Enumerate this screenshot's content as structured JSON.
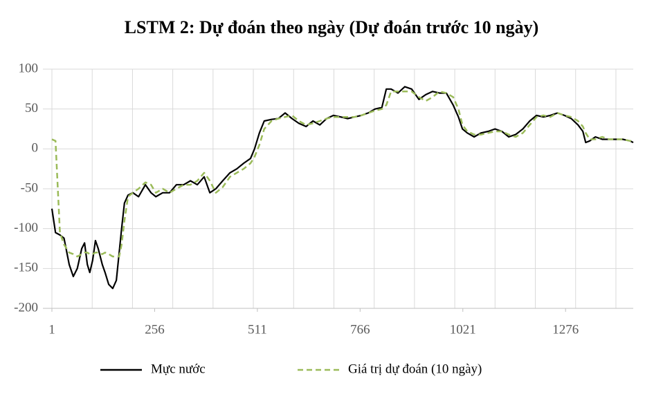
{
  "chart_data": {
    "type": "line",
    "title": "LSTM 2: Dự đoán theo ngày (Dự đoán trước 10 ngày)",
    "x": [
      1,
      10,
      21,
      31,
      44,
      54,
      64,
      75,
      82,
      89,
      95,
      102,
      109,
      116,
      126,
      133,
      142,
      152,
      161,
      168,
      174,
      181,
      190,
      202,
      216,
      233,
      247,
      259,
      276,
      293,
      310,
      328,
      345,
      362,
      379,
      393,
      408,
      425,
      443,
      460,
      477,
      494,
      504,
      516,
      528,
      546,
      563,
      580,
      597,
      614,
      632,
      649,
      666,
      683,
      700,
      718,
      735,
      752,
      769,
      786,
      803,
      820,
      831,
      843,
      860,
      877,
      894,
      912,
      929,
      946,
      963,
      980,
      997,
      1010,
      1020,
      1032,
      1049,
      1066,
      1084,
      1101,
      1118,
      1135,
      1152,
      1170,
      1187,
      1204,
      1221,
      1238,
      1256,
      1273,
      1290,
      1307,
      1319,
      1326,
      1336,
      1350,
      1367,
      1384,
      1401,
      1418,
      1436,
      1444
    ],
    "series": [
      {
        "name": "Mực nước",
        "color": "#000000",
        "dash": false,
        "values": [
          -75,
          -105,
          -108,
          -112,
          -145,
          -160,
          -150,
          -125,
          -118,
          -145,
          -155,
          -140,
          -115,
          -125,
          -145,
          -155,
          -170,
          -175,
          -165,
          -130,
          -100,
          -68,
          -58,
          -55,
          -60,
          -45,
          -55,
          -60,
          -55,
          -55,
          -45,
          -45,
          -40,
          -45,
          -35,
          -55,
          -50,
          -40,
          -30,
          -25,
          -18,
          -12,
          0,
          20,
          35,
          37,
          38,
          45,
          38,
          32,
          28,
          35,
          30,
          38,
          42,
          40,
          38,
          40,
          42,
          45,
          50,
          52,
          75,
          75,
          70,
          78,
          75,
          62,
          68,
          72,
          70,
          70,
          55,
          40,
          25,
          20,
          15,
          20,
          22,
          25,
          22,
          15,
          18,
          25,
          35,
          42,
          40,
          42,
          45,
          42,
          38,
          30,
          22,
          8,
          10,
          15,
          12,
          12,
          12,
          12,
          10,
          8
        ]
      },
      {
        "name": "Giá trị dự đoán (10 ngày)",
        "color": "#9bbb59",
        "dash": true,
        "values": [
          12,
          10,
          -105,
          -120,
          -130,
          -132,
          -135,
          -132,
          -130,
          -130,
          -132,
          -132,
          -130,
          -130,
          -132,
          -130,
          -132,
          -135,
          -135,
          -135,
          -120,
          -90,
          -60,
          -55,
          -50,
          -42,
          -45,
          -55,
          -50,
          -55,
          -50,
          -45,
          -45,
          -40,
          -30,
          -40,
          -55,
          -48,
          -35,
          -30,
          -25,
          -18,
          -10,
          5,
          25,
          35,
          38,
          40,
          42,
          35,
          30,
          32,
          35,
          38,
          40,
          40,
          40,
          40,
          42,
          45,
          48,
          50,
          55,
          72,
          72,
          72,
          72,
          65,
          60,
          65,
          72,
          70,
          65,
          50,
          30,
          22,
          18,
          18,
          20,
          22,
          22,
          18,
          15,
          20,
          30,
          40,
          42,
          40,
          45,
          42,
          40,
          35,
          28,
          20,
          12,
          12,
          15,
          12,
          12,
          12,
          10,
          10
        ]
      }
    ],
    "xlim": [
      1,
      1444
    ],
    "xticks": [
      1,
      256,
      511,
      766,
      1021,
      1276
    ],
    "x_gridlines": [
      1,
      101,
      201,
      301,
      401,
      501,
      601,
      701,
      801,
      901,
      1001,
      1101,
      1201,
      1301,
      1401
    ],
    "ylim": [
      -200,
      100
    ],
    "yticks": [
      -200,
      -150,
      -100,
      -50,
      0,
      50,
      100
    ],
    "grid": true,
    "legend": "bottom"
  }
}
